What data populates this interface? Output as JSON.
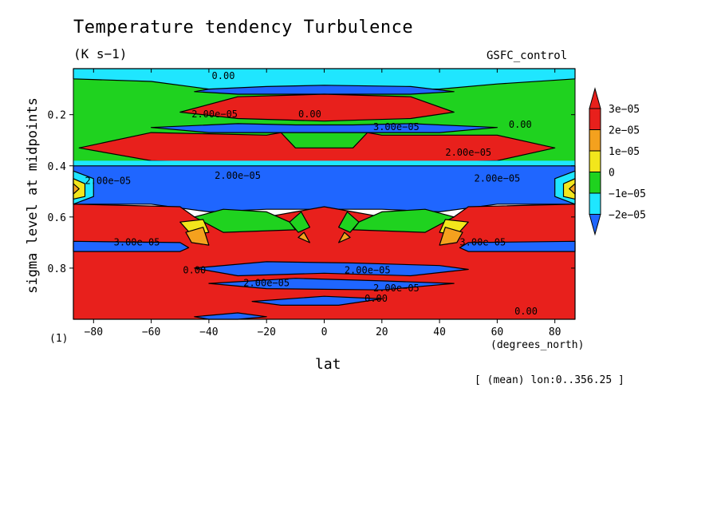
{
  "chart_data": {
    "type": "heatmap",
    "title": "Temperature tendency Turbulence",
    "units": "(K s−1)",
    "dataset_label": "GSFC_control",
    "xlabel": "lat",
    "xunits": "(degrees_north)",
    "ylabel": "sigma level at midpoints",
    "panel_id": "(1)",
    "averaging_note": "[ (mean) lon:0..356.25 ]",
    "xlim": [
      -87,
      87
    ],
    "ylim": [
      1.0,
      0.02
    ],
    "x_ticks": [
      -80,
      -60,
      -40,
      -20,
      0,
      20,
      40,
      60,
      80
    ],
    "x_tick_labels": [
      "−80",
      "−60",
      "−40",
      "−20",
      "0",
      "20",
      "40",
      "60",
      "80"
    ],
    "y_ticks": [
      0.2,
      0.4,
      0.6,
      0.8
    ],
    "y_tick_labels": [
      "0.2",
      "0.4",
      "0.6",
      "0.8"
    ],
    "colorbar": {
      "levels": [
        "3e−05",
        "2e−05",
        "1e−05",
        "0",
        "−1e−05",
        "−2e−05"
      ],
      "colors": [
        "#e8201c",
        "#f4a11e",
        "#f2e61c",
        "#1fd21f",
        "#1fe6ff",
        "#1f66ff"
      ],
      "extend_colors": {
        "top": "#e8201c",
        "bottom": "#1f66ff"
      }
    },
    "regions": [
      {
        "value_class": "0",
        "color": "#1fd21f",
        "lat": [
          -87,
          87
        ],
        "sigma": [
          0.02,
          0.4
        ]
      },
      {
        "value_class": "red",
        "color": "#e8201c",
        "lat": [
          -45,
          45
        ],
        "sigma": [
          0.1,
          0.22
        ]
      },
      {
        "value_class": "blue",
        "color": "#1f66ff",
        "lat": [
          -87,
          87
        ],
        "sigma": [
          0.42,
          0.56
        ]
      },
      {
        "value_class": "red",
        "color": "#e8201c",
        "lat": [
          -87,
          87
        ],
        "sigma": [
          0.65,
          1.0
        ]
      }
    ],
    "contour_labels": [
      {
        "text": "0.00",
        "lat": -35,
        "sigma": 0.05
      },
      {
        "text": "0.00",
        "lat": 68,
        "sigma": 0.24
      },
      {
        "text": "2.00e−05",
        "lat": -38,
        "sigma": 0.2
      },
      {
        "text": "0.00",
        "lat": -5,
        "sigma": 0.2
      },
      {
        "text": "3.00e−05",
        "lat": 25,
        "sigma": 0.25
      },
      {
        "text": "2.00e−05",
        "lat": 50,
        "sigma": 0.35
      },
      {
        "text": "2.00e−05",
        "lat": -75,
        "sigma": 0.46
      },
      {
        "text": "2.00e−05",
        "lat": -30,
        "sigma": 0.44
      },
      {
        "text": "2.00e−05",
        "lat": 60,
        "sigma": 0.45
      },
      {
        "text": "3.00e−05",
        "lat": -65,
        "sigma": 0.7
      },
      {
        "text": "3.00e−05",
        "lat": 55,
        "sigma": 0.7
      },
      {
        "text": "0.00",
        "lat": -45,
        "sigma": 0.81
      },
      {
        "text": "2.00e−05",
        "lat": 15,
        "sigma": 0.81
      },
      {
        "text": "2.00e−05",
        "lat": -20,
        "sigma": 0.86
      },
      {
        "text": "2.00e−05",
        "lat": 25,
        "sigma": 0.88
      },
      {
        "text": "0.00",
        "lat": 18,
        "sigma": 0.92
      },
      {
        "text": "0.00",
        "lat": 70,
        "sigma": 0.97
      }
    ]
  }
}
